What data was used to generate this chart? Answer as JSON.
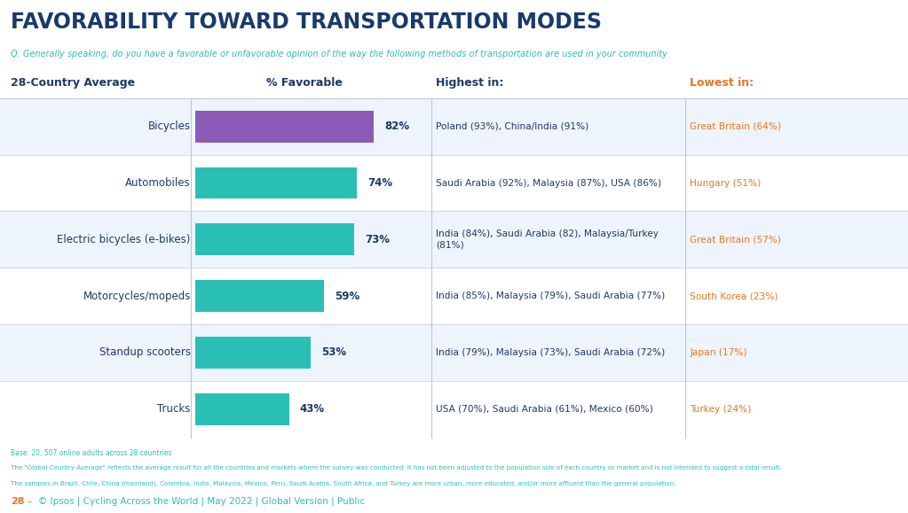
{
  "title": "FAVORABILITY TOWARD TRANSPORTATION MODES",
  "subtitle": "Q. Generally speaking, do you have a favorable or unfavorable opinion of the way the following methods of transportation are used in your community",
  "col1_header": "28-Country Average",
  "col2_header": "% Favorable",
  "col3_header": "Highest in:",
  "col4_header": "Lowest in:",
  "categories": [
    "Bicycles",
    "Automobiles",
    "Electric bicycles (e-bikes)",
    "Motorcycles/mopeds",
    "Standup scooters",
    "Trucks"
  ],
  "values": [
    82,
    74,
    73,
    59,
    53,
    43
  ],
  "bar_colors": [
    "#8B5BB5",
    "#2ABFB5",
    "#2ABFB5",
    "#2ABFB5",
    "#2ABFB5",
    "#2ABFB5"
  ],
  "highest": [
    "Poland (93%), China/India (91%)",
    "Saudi Arabia (92%), Malaysia (87%), USA (86%)",
    "India (84%), Saudi Arabia (82), Malaysia/Turkey\n(81%)",
    "India (85%), Malaysia (79%), Saudi Arabia (77%)",
    "India (79%), Malaysia (73%), Saudi Arabia (72%)",
    "USA (70%), Saudi Arabia (61%), Mexico (60%)"
  ],
  "lowest": [
    "Great Britain (64%)",
    "Hungary (51%)",
    "Great Britain (57%)",
    "South Korea (23%)",
    "Japan (17%)",
    "Turkey (24%)"
  ],
  "footer_line1": "Base: 20, 507 online adults across 28 countries",
  "footer_line2": "The \"Global Country Average\" reflects the average result for all the countries and markets where the survey was conducted. It has not been adjusted to the population size of each country or market and is not intended to suggest a total result.",
  "footer_line3": "The samples in Brazil, Chile, China (mainland), Colombia, India, Malaysia, Mexico, Peru, Saudi Arabia, South Africa, and Turkey are more urban, more educated, and/or more affluent than the general population.",
  "title_color": "#1B3A6B",
  "subtitle_color": "#2ABFB5",
  "header_color": "#1B3A6B",
  "lowest_header_color": "#E87722",
  "lowest_text_color": "#E87722",
  "highest_text_color": "#1B3A6B",
  "category_text_color": "#1B3A6B",
  "pct_text_color": "#1B3A6B",
  "bg_color": "#FFFFFF",
  "row_alt_color": "#EEF4FB",
  "footer_color": "#2ABFB5",
  "divider_color": "#C0C8D8",
  "logo_bg": "#1B3A6B",
  "logo_text": "Ipsos",
  "footer_orange": "#E87722",
  "footer_page": "28",
  "footer_rest": " –  © Ipsos | Cycling Across the World | May 2022 | Global Version | Public"
}
